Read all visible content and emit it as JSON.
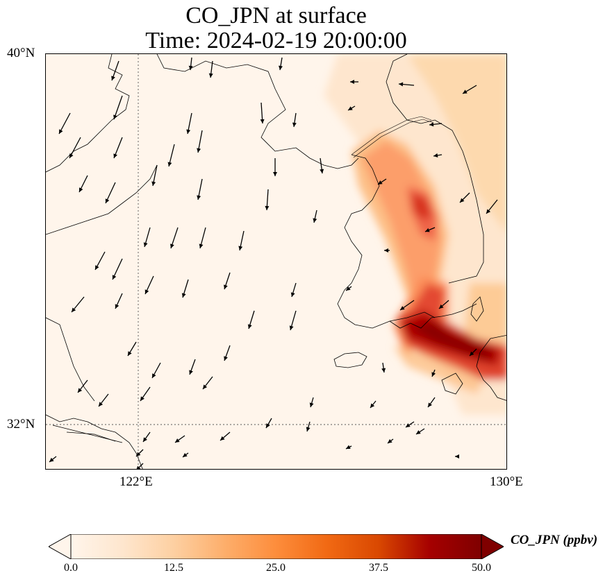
{
  "title": {
    "line1": "CO_JPN at surface",
    "line2": "Time: 2024-02-19 20:00:00"
  },
  "axes": {
    "lat_labels": [
      "40°N",
      "32°N"
    ],
    "lon_labels": [
      "122°E",
      "130°E"
    ]
  },
  "colorbar": {
    "label": "CO_JPN (ppbv)",
    "ticks": [
      "0.0",
      "12.5",
      "25.0",
      "37.5",
      "50.0"
    ],
    "min": 0,
    "max": 50,
    "colormap": [
      "#fff5eb",
      "#fee6ce",
      "#fdd0a2",
      "#fdae6b",
      "#fd8d3c",
      "#f16913",
      "#d94801",
      "#a50000",
      "#7f0000"
    ]
  },
  "map": {
    "extent": {
      "lon_min": 120,
      "lon_max": 130,
      "lat_min": 31,
      "lat_max": 40
    },
    "gridlines": {
      "lon": [
        122
      ],
      "lat": [
        32
      ]
    }
  }
}
